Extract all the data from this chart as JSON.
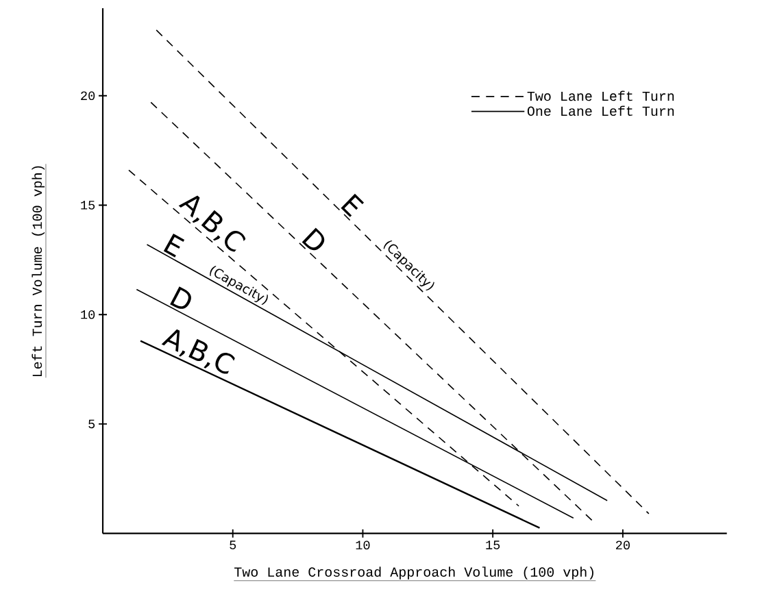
{
  "chart_data": {
    "type": "line",
    "xlabel": "Two Lane Crossroad Approach Volume (100 vph)",
    "ylabel": "Left Turn Volume (100 vph)",
    "xlim": [
      0,
      24
    ],
    "ylim": [
      0,
      24
    ],
    "xticks": [
      5,
      10,
      15,
      20
    ],
    "yticks": [
      5,
      10,
      15,
      20
    ],
    "grid": false,
    "legend": "top right",
    "marker": "none",
    "series": [
      {
        "name": "Two Lane Left Turn",
        "color": "#000000",
        "line_style": "dashed",
        "x": [
          2.06,
          21.0
        ],
        "values": [
          23.0,
          0.9
        ]
      },
      {
        "color": "#000000",
        "line_style": "dashed",
        "x": [
          1.85,
          18.9
        ],
        "values": [
          19.7,
          0.5
        ]
      },
      {
        "color": "#000000",
        "line_style": "dashed",
        "x": [
          1.0,
          16.0
        ],
        "values": [
          16.6,
          1.25
        ]
      },
      {
        "name": "One Lane Left Turn",
        "color": "#000000",
        "line_style": "solid",
        "x": [
          1.7,
          19.4
        ],
        "values": [
          13.2,
          1.5
        ]
      },
      {
        "color": "#000000",
        "line_style": "solid",
        "x": [
          1.3,
          18.1
        ],
        "values": [
          11.15,
          0.7
        ]
      },
      {
        "color": "#000000",
        "line_style": "solid",
        "x": [
          1.45,
          16.8
        ],
        "values": [
          8.8,
          0.25
        ]
      }
    ],
    "annotations": [
      "E",
      "(Capacity)",
      "D",
      "A,B,C",
      "E",
      "(Capacity)",
      "D",
      "A,B,C"
    ]
  }
}
